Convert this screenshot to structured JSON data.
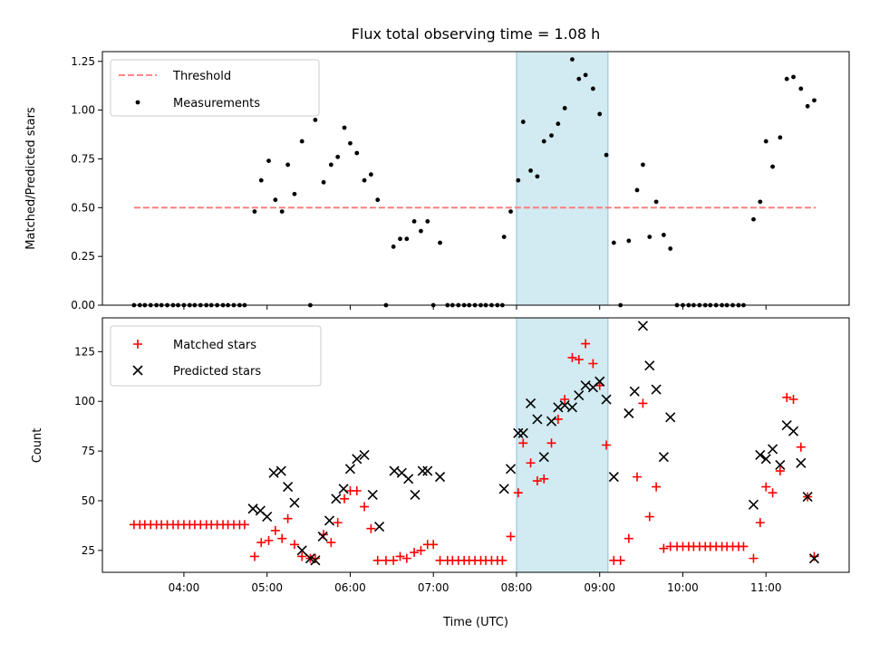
{
  "chart_data": {
    "title": "Flux total observing time = 1.08 h",
    "xlabel": "Time (UTC)",
    "x_ticks": [
      "04:00",
      "05:00",
      "06:00",
      "07:00",
      "08:00",
      "09:00",
      "10:00",
      "11:00"
    ],
    "x_tick_hours": [
      4,
      5,
      6,
      7,
      8,
      9,
      10,
      11
    ],
    "xlim": [
      3.02,
      12.0
    ],
    "highlight_span": [
      8.0,
      9.1
    ],
    "colors": {
      "threshold": "#ff7777",
      "measurements": "#000000",
      "matched": "#ff0000",
      "predicted": "#000000",
      "span": "#add8e6"
    },
    "panels": [
      {
        "type": "scatter",
        "ylabel": "Matched/Predicted stars",
        "ylim": [
          0,
          1.3
        ],
        "y_ticks": [
          "0.00",
          "0.25",
          "0.50",
          "0.75",
          "1.00",
          "1.25"
        ],
        "y_tick_values": [
          0,
          0.25,
          0.5,
          0.75,
          1.0,
          1.25
        ],
        "legend": [
          "Threshold",
          "Measurements"
        ],
        "threshold": {
          "value": 0.5,
          "x_range": [
            3.4,
            11.6
          ]
        },
        "measurements": [
          [
            3.4,
            0
          ],
          [
            3.47,
            0
          ],
          [
            3.53,
            0
          ],
          [
            3.6,
            0
          ],
          [
            3.67,
            0
          ],
          [
            3.73,
            0
          ],
          [
            3.8,
            0
          ],
          [
            3.87,
            0
          ],
          [
            3.93,
            0
          ],
          [
            4.0,
            0
          ],
          [
            4.07,
            0
          ],
          [
            4.13,
            0
          ],
          [
            4.2,
            0
          ],
          [
            4.27,
            0
          ],
          [
            4.33,
            0
          ],
          [
            4.4,
            0
          ],
          [
            4.47,
            0
          ],
          [
            4.53,
            0
          ],
          [
            4.6,
            0
          ],
          [
            4.67,
            0
          ],
          [
            4.73,
            0
          ],
          [
            4.85,
            0.48
          ],
          [
            4.93,
            0.64
          ],
          [
            5.02,
            0.74
          ],
          [
            5.1,
            0.54
          ],
          [
            5.18,
            0.48
          ],
          [
            5.25,
            0.72
          ],
          [
            5.33,
            0.57
          ],
          [
            5.42,
            0.84
          ],
          [
            5.52,
            0
          ],
          [
            5.58,
            0.95
          ],
          [
            5.68,
            0.63
          ],
          [
            5.77,
            0.72
          ],
          [
            5.85,
            0.76
          ],
          [
            5.93,
            0.91
          ],
          [
            6.0,
            0.83
          ],
          [
            6.08,
            0.78
          ],
          [
            6.17,
            0.64
          ],
          [
            6.25,
            0.67
          ],
          [
            6.33,
            0.54
          ],
          [
            6.43,
            0
          ],
          [
            6.52,
            0.3
          ],
          [
            6.6,
            0.34
          ],
          [
            6.68,
            0.34
          ],
          [
            6.77,
            0.43
          ],
          [
            6.85,
            0.38
          ],
          [
            6.93,
            0.43
          ],
          [
            7.0,
            0
          ],
          [
            7.08,
            0.32
          ],
          [
            7.17,
            0
          ],
          [
            7.23,
            0
          ],
          [
            7.3,
            0
          ],
          [
            7.37,
            0
          ],
          [
            7.43,
            0
          ],
          [
            7.5,
            0
          ],
          [
            7.57,
            0
          ],
          [
            7.63,
            0
          ],
          [
            7.7,
            0
          ],
          [
            7.77,
            0
          ],
          [
            7.83,
            0
          ],
          [
            7.85,
            0.35
          ],
          [
            7.93,
            0.48
          ],
          [
            8.02,
            0.64
          ],
          [
            8.08,
            0.94
          ],
          [
            8.17,
            0.69
          ],
          [
            8.25,
            0.66
          ],
          [
            8.33,
            0.84
          ],
          [
            8.42,
            0.87
          ],
          [
            8.5,
            0.93
          ],
          [
            8.58,
            1.01
          ],
          [
            8.67,
            1.26
          ],
          [
            8.75,
            1.16
          ],
          [
            8.83,
            1.18
          ],
          [
            8.92,
            1.11
          ],
          [
            9.0,
            0.98
          ],
          [
            9.08,
            0.77
          ],
          [
            9.17,
            0.32
          ],
          [
            9.25,
            0
          ],
          [
            9.35,
            0.33
          ],
          [
            9.45,
            0.59
          ],
          [
            9.52,
            0.72
          ],
          [
            9.6,
            0.35
          ],
          [
            9.68,
            0.53
          ],
          [
            9.77,
            0.36
          ],
          [
            9.85,
            0.29
          ],
          [
            9.93,
            0
          ],
          [
            10.0,
            0
          ],
          [
            10.07,
            0
          ],
          [
            10.13,
            0
          ],
          [
            10.2,
            0
          ],
          [
            10.27,
            0
          ],
          [
            10.33,
            0
          ],
          [
            10.4,
            0
          ],
          [
            10.47,
            0
          ],
          [
            10.53,
            0
          ],
          [
            10.6,
            0
          ],
          [
            10.67,
            0
          ],
          [
            10.73,
            0
          ],
          [
            10.85,
            0.44
          ],
          [
            10.93,
            0.53
          ],
          [
            11.0,
            0.84
          ],
          [
            11.08,
            0.71
          ],
          [
            11.17,
            0.86
          ],
          [
            11.25,
            1.16
          ],
          [
            11.33,
            1.17
          ],
          [
            11.42,
            1.11
          ],
          [
            11.5,
            1.02
          ],
          [
            11.58,
            1.05
          ]
        ]
      },
      {
        "type": "scatter",
        "ylabel": "Count",
        "ylim": [
          14,
          142
        ],
        "y_ticks": [
          "25",
          "50",
          "75",
          "100",
          "125"
        ],
        "y_tick_values": [
          25,
          50,
          75,
          100,
          125
        ],
        "legend": [
          "Matched stars",
          "Predicted stars"
        ],
        "matched": [
          [
            3.4,
            38
          ],
          [
            3.47,
            38
          ],
          [
            3.53,
            38
          ],
          [
            3.6,
            38
          ],
          [
            3.67,
            38
          ],
          [
            3.73,
            38
          ],
          [
            3.8,
            38
          ],
          [
            3.87,
            38
          ],
          [
            3.93,
            38
          ],
          [
            4.0,
            38
          ],
          [
            4.07,
            38
          ],
          [
            4.13,
            38
          ],
          [
            4.2,
            38
          ],
          [
            4.27,
            38
          ],
          [
            4.33,
            38
          ],
          [
            4.4,
            38
          ],
          [
            4.47,
            38
          ],
          [
            4.53,
            38
          ],
          [
            4.6,
            38
          ],
          [
            4.67,
            38
          ],
          [
            4.73,
            38
          ],
          [
            4.85,
            22
          ],
          [
            4.93,
            29
          ],
          [
            5.02,
            30
          ],
          [
            5.1,
            35
          ],
          [
            5.18,
            31
          ],
          [
            5.25,
            41
          ],
          [
            5.33,
            28
          ],
          [
            5.42,
            22
          ],
          [
            5.52,
            21
          ],
          [
            5.58,
            21
          ],
          [
            5.68,
            33
          ],
          [
            5.77,
            29
          ],
          [
            5.85,
            39
          ],
          [
            5.93,
            51
          ],
          [
            6.0,
            55
          ],
          [
            6.08,
            55
          ],
          [
            6.17,
            47
          ],
          [
            6.25,
            36
          ],
          [
            6.33,
            20
          ],
          [
            6.43,
            20
          ],
          [
            6.52,
            20
          ],
          [
            6.6,
            22
          ],
          [
            6.68,
            21
          ],
          [
            6.77,
            24
          ],
          [
            6.85,
            25
          ],
          [
            6.93,
            28
          ],
          [
            7.0,
            28
          ],
          [
            7.08,
            20
          ],
          [
            7.17,
            20
          ],
          [
            7.23,
            20
          ],
          [
            7.3,
            20
          ],
          [
            7.37,
            20
          ],
          [
            7.43,
            20
          ],
          [
            7.5,
            20
          ],
          [
            7.57,
            20
          ],
          [
            7.63,
            20
          ],
          [
            7.7,
            20
          ],
          [
            7.77,
            20
          ],
          [
            7.83,
            20
          ],
          [
            7.93,
            32
          ],
          [
            8.02,
            54
          ],
          [
            8.08,
            79
          ],
          [
            8.17,
            69
          ],
          [
            8.25,
            60
          ],
          [
            8.33,
            61
          ],
          [
            8.42,
            79
          ],
          [
            8.5,
            91
          ],
          [
            8.58,
            101
          ],
          [
            8.67,
            122
          ],
          [
            8.75,
            121
          ],
          [
            8.83,
            129
          ],
          [
            8.92,
            119
          ],
          [
            9.0,
            108
          ],
          [
            9.08,
            78
          ],
          [
            9.17,
            20
          ],
          [
            9.25,
            20
          ],
          [
            9.35,
            31
          ],
          [
            9.45,
            62
          ],
          [
            9.52,
            99
          ],
          [
            9.6,
            42
          ],
          [
            9.68,
            57
          ],
          [
            9.77,
            26
          ],
          [
            9.85,
            27
          ],
          [
            9.93,
            27
          ],
          [
            10.0,
            27
          ],
          [
            10.07,
            27
          ],
          [
            10.13,
            27
          ],
          [
            10.2,
            27
          ],
          [
            10.27,
            27
          ],
          [
            10.33,
            27
          ],
          [
            10.4,
            27
          ],
          [
            10.47,
            27
          ],
          [
            10.53,
            27
          ],
          [
            10.6,
            27
          ],
          [
            10.67,
            27
          ],
          [
            10.73,
            27
          ],
          [
            10.85,
            21
          ],
          [
            10.93,
            39
          ],
          [
            11.0,
            57
          ],
          [
            11.08,
            54
          ],
          [
            11.17,
            65
          ],
          [
            11.25,
            102
          ],
          [
            11.33,
            101
          ],
          [
            11.42,
            77
          ],
          [
            11.5,
            52
          ],
          [
            11.58,
            22
          ]
        ],
        "predicted": [
          [
            4.83,
            46
          ],
          [
            4.92,
            45
          ],
          [
            5.0,
            42
          ],
          [
            5.08,
            64
          ],
          [
            5.17,
            65
          ],
          [
            5.25,
            57
          ],
          [
            5.33,
            49
          ],
          [
            5.42,
            25
          ],
          [
            5.52,
            21
          ],
          [
            5.58,
            20
          ],
          [
            5.67,
            32
          ],
          [
            5.75,
            40
          ],
          [
            5.83,
            51
          ],
          [
            5.92,
            56
          ],
          [
            6.0,
            66
          ],
          [
            6.08,
            71
          ],
          [
            6.17,
            73
          ],
          [
            6.27,
            53
          ],
          [
            6.35,
            37
          ],
          [
            6.53,
            65
          ],
          [
            6.62,
            64
          ],
          [
            6.7,
            61
          ],
          [
            6.78,
            53
          ],
          [
            6.87,
            65
          ],
          [
            6.93,
            65
          ],
          [
            7.08,
            62
          ],
          [
            7.85,
            56
          ],
          [
            7.93,
            66
          ],
          [
            8.02,
            84
          ],
          [
            8.08,
            84
          ],
          [
            8.17,
            99
          ],
          [
            8.25,
            91
          ],
          [
            8.33,
            72
          ],
          [
            8.42,
            90
          ],
          [
            8.5,
            97
          ],
          [
            8.58,
            98
          ],
          [
            8.67,
            97
          ],
          [
            8.75,
            103
          ],
          [
            8.83,
            108
          ],
          [
            8.92,
            107
          ],
          [
            9.0,
            110
          ],
          [
            9.08,
            101
          ],
          [
            9.17,
            62
          ],
          [
            9.35,
            94
          ],
          [
            9.42,
            105
          ],
          [
            9.52,
            138
          ],
          [
            9.6,
            118
          ],
          [
            9.68,
            106
          ],
          [
            9.77,
            72
          ],
          [
            9.85,
            92
          ],
          [
            10.85,
            48
          ],
          [
            10.93,
            73
          ],
          [
            11.0,
            71
          ],
          [
            11.08,
            76
          ],
          [
            11.17,
            68
          ],
          [
            11.25,
            88
          ],
          [
            11.33,
            85
          ],
          [
            11.42,
            69
          ],
          [
            11.5,
            52
          ],
          [
            11.58,
            21
          ]
        ]
      }
    ]
  }
}
